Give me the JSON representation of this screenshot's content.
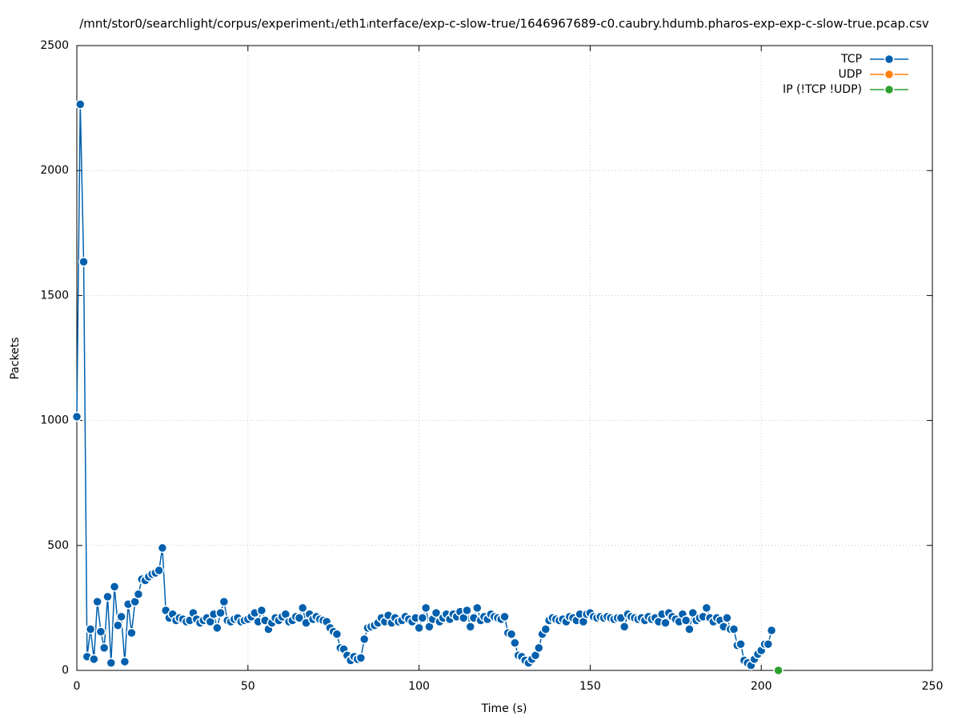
{
  "chart_data": {
    "type": "line",
    "title": "/mnt/stor0/searchlight/corpus/experiment₁/eth1ᵢnterface/exp-c-slow-true/1646967689-c0.caubry.hdumb.pharos-exp-exp-c-slow-true.pcap.csv",
    "x_label": "Time (s)",
    "y_label": "Packets",
    "xlim": [
      0,
      250
    ],
    "xticks": [
      0,
      50,
      100,
      150,
      200,
      250
    ],
    "ylim": [
      0,
      2500
    ],
    "yticks": [
      0,
      500,
      1000,
      1500,
      2000,
      2500
    ],
    "grid": true,
    "legend": "top-right",
    "series": [
      {
        "name": "TCP",
        "color": "#0060ad",
        "x": [
          0,
          1,
          2,
          3,
          4,
          5,
          6,
          7,
          8,
          9,
          10,
          11,
          12,
          13,
          14,
          15,
          16,
          17,
          18,
          19,
          20,
          21,
          22,
          23,
          24,
          25,
          26,
          27,
          28,
          29,
          30,
          31,
          32,
          33,
          34,
          35,
          36,
          37,
          38,
          39,
          40,
          41,
          42,
          43,
          44,
          45,
          46,
          47,
          48,
          49,
          50,
          51,
          52,
          53,
          54,
          55,
          56,
          57,
          58,
          59,
          60,
          61,
          62,
          63,
          64,
          65,
          66,
          67,
          68,
          69,
          70,
          71,
          72,
          73,
          74,
          75,
          76,
          77,
          78,
          79,
          80,
          81,
          82,
          83,
          84,
          85,
          86,
          87,
          88,
          89,
          90,
          91,
          92,
          93,
          94,
          95,
          96,
          97,
          98,
          99,
          100,
          101,
          102,
          103,
          104,
          105,
          106,
          107,
          108,
          109,
          110,
          111,
          112,
          113,
          114,
          115,
          116,
          117,
          118,
          119,
          120,
          121,
          122,
          123,
          124,
          125,
          126,
          127,
          128,
          129,
          130,
          131,
          132,
          133,
          134,
          135,
          136,
          137,
          138,
          139,
          140,
          141,
          142,
          143,
          144,
          145,
          146,
          147,
          148,
          149,
          150,
          151,
          152,
          153,
          154,
          155,
          156,
          157,
          158,
          159,
          160,
          161,
          162,
          163,
          164,
          165,
          166,
          167,
          168,
          169,
          170,
          171,
          172,
          173,
          174,
          175,
          176,
          177,
          178,
          179,
          180,
          181,
          182,
          183,
          184,
          185,
          186,
          187,
          188,
          189,
          190,
          191,
          192,
          193,
          194,
          195,
          196,
          197,
          198,
          199,
          200,
          201,
          202,
          203
        ],
        "values": [
          1015,
          2265,
          1635,
          55,
          165,
          45,
          275,
          155,
          90,
          295,
          30,
          335,
          180,
          215,
          35,
          265,
          150,
          275,
          305,
          365,
          360,
          375,
          385,
          390,
          400,
          490,
          240,
          210,
          225,
          200,
          210,
          205,
          195,
          200,
          230,
          205,
          190,
          200,
          210,
          195,
          225,
          170,
          230,
          275,
          200,
          195,
          205,
          210,
          195,
          200,
          205,
          215,
          230,
          195,
          240,
          200,
          165,
          190,
          210,
          200,
          215,
          225,
          195,
          200,
          215,
          210,
          250,
          190,
          225,
          205,
          215,
          205,
          200,
          195,
          170,
          155,
          145,
          90,
          85,
          60,
          40,
          55,
          45,
          50,
          125,
          170,
          175,
          180,
          190,
          210,
          195,
          220,
          190,
          210,
          195,
          200,
          215,
          205,
          195,
          210,
          170,
          210,
          250,
          175,
          205,
          230,
          195,
          210,
          225,
          205,
          225,
          215,
          235,
          210,
          240,
          175,
          210,
          250,
          200,
          215,
          205,
          225,
          215,
          210,
          205,
          215,
          150,
          145,
          110,
          60,
          55,
          40,
          30,
          45,
          60,
          90,
          145,
          165,
          200,
          210,
          205,
          200,
          205,
          195,
          215,
          210,
          200,
          225,
          195,
          225,
          230,
          215,
          210,
          215,
          210,
          215,
          210,
          205,
          210,
          210,
          175,
          225,
          215,
          210,
          205,
          210,
          200,
          215,
          205,
          210,
          195,
          225,
          190,
          230,
          215,
          205,
          195,
          225,
          200,
          165,
          230,
          200,
          210,
          215,
          250,
          210,
          195,
          210,
          200,
          175,
          210,
          165,
          165,
          100,
          105,
          40,
          30,
          20,
          45,
          65,
          80,
          105,
          105,
          160
        ]
      },
      {
        "name": "UDP",
        "color": "#ff7f0e",
        "x": [],
        "values": []
      },
      {
        "name": "IP (!TCP  !UDP)",
        "color": "#2ca02c",
        "x": [
          205
        ],
        "values": [
          0
        ]
      }
    ]
  }
}
